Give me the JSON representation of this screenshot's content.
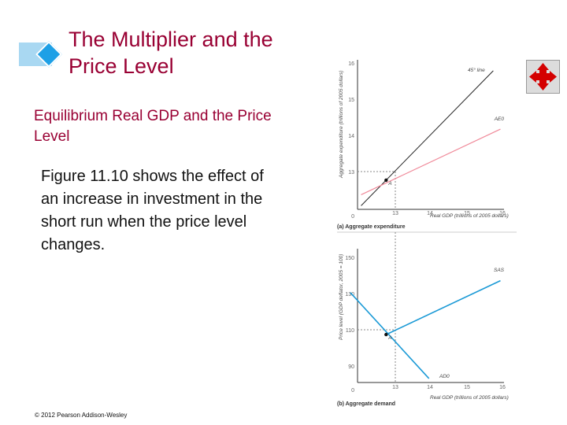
{
  "slide": {
    "title": "The Multiplier and the Price Level",
    "subtitle": "Equilibrium Real GDP and the Price Level",
    "body": "Figure 11.10 shows the effect of an increase in investment in the short run when the price level changes.",
    "copyright": "© 2012 Pearson Addison-Wesley",
    "accent_color": "#990033",
    "deco_color": "#1ea0e6",
    "nav_icon": "four-way-arrow-icon"
  },
  "chart_data": [
    {
      "type": "line",
      "caption": "(a) Aggregate expenditure",
      "xlabel": "Real GDP (trillions of 2005 dollars)",
      "ylabel": "Aggregate expenditure (trillions of 2005 dollars)",
      "x_ticks": [
        "0",
        "13",
        "14",
        "15",
        "16"
      ],
      "y_ticks": [
        "13",
        "14",
        "15",
        "16"
      ],
      "xlim": [
        12.2,
        16.3
      ],
      "ylim": [
        12.2,
        16.3
      ],
      "series": [
        {
          "name": "45° line",
          "color": "#222222",
          "x": [
            12.3,
            16.0
          ],
          "y": [
            12.3,
            16.0
          ]
        },
        {
          "name": "AE0",
          "color": "#f08a9a",
          "x": [
            12.3,
            16.2
          ],
          "y": [
            12.6,
            14.4
          ]
        }
      ],
      "points": [
        {
          "label": "A",
          "x": 13,
          "y": 13
        }
      ]
    },
    {
      "type": "line",
      "caption": "(b) Aggregate demand",
      "xlabel": "Real GDP (trillions of 2005 dollars)",
      "ylabel": "Price level (GDP deflator, 2005 = 100)",
      "x_ticks": [
        "0",
        "13",
        "14",
        "15",
        "16"
      ],
      "y_ticks": [
        "90",
        "110",
        "130",
        "150"
      ],
      "xlim": [
        12.2,
        16.3
      ],
      "ylim": [
        86,
        153
      ],
      "series": [
        {
          "name": "SAS",
          "color": "#1b9ad6",
          "x": [
            13.0,
            16.2
          ],
          "y": [
            110,
            137
          ]
        },
        {
          "name": "AD0",
          "color": "#1b9ad6",
          "x": [
            12.0,
            14.2
          ],
          "y": [
            131,
            88
          ]
        }
      ],
      "points": [
        {
          "label": "A",
          "x": 13,
          "y": 110
        }
      ]
    }
  ]
}
